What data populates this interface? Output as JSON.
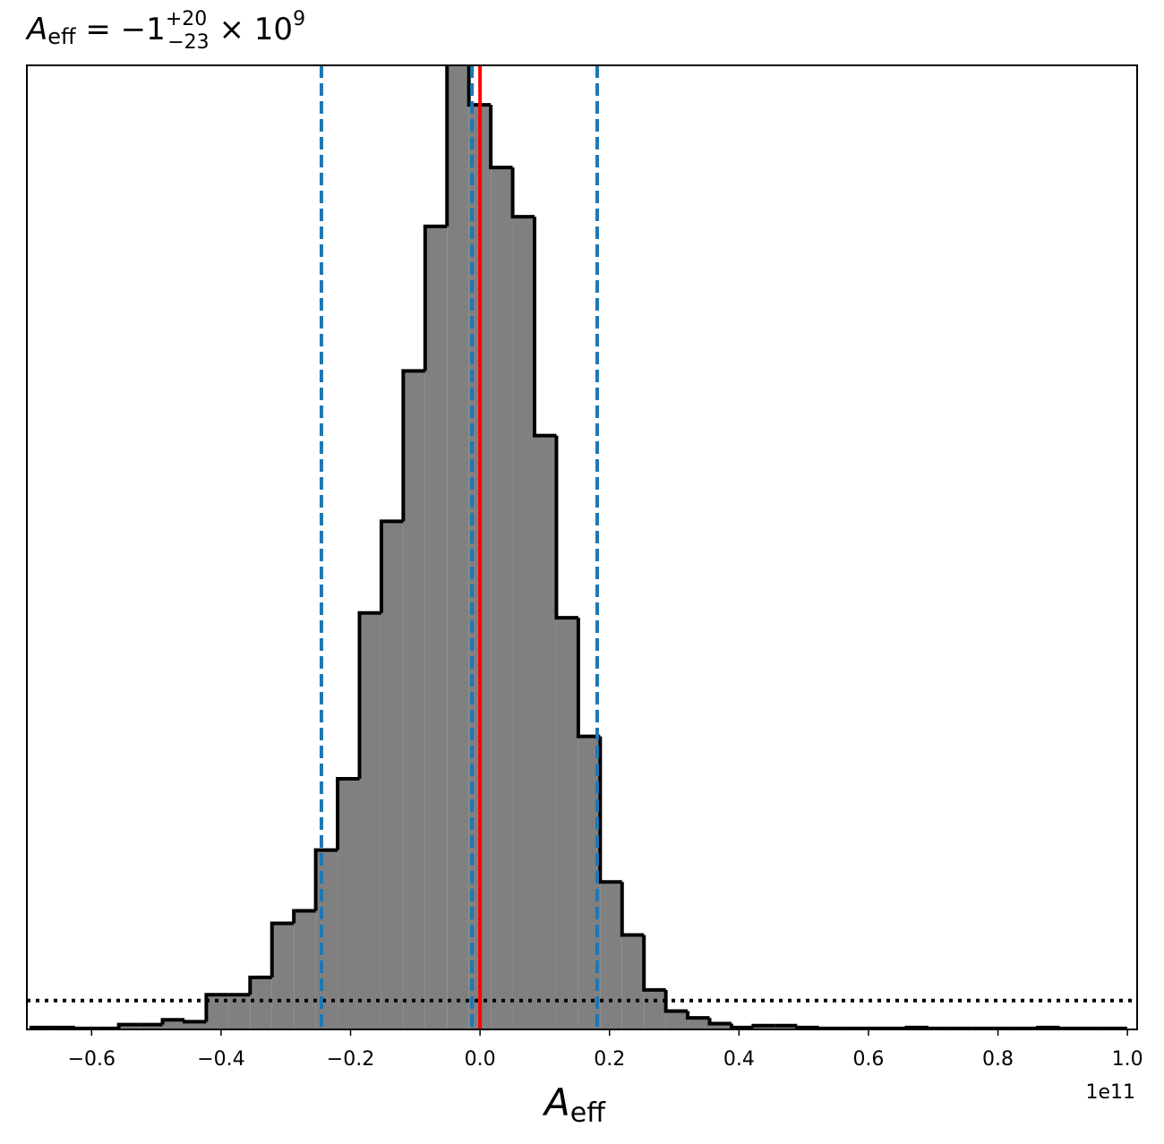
{
  "chart_data": {
    "type": "histogram",
    "title": {
      "symbol": "A",
      "symbol_sub": "eff",
      "text": " = −1",
      "sup": "+20",
      "sub": "−23",
      "suffix": " × 10",
      "exp": "9"
    },
    "xlabel": {
      "symbol": "A",
      "symbol_sub": "eff"
    },
    "x_offset_label": "1e11",
    "bins": [
      -0.6932,
      -0.6594,
      -0.6256,
      -0.5918,
      -0.558,
      -0.5242,
      -0.4904,
      -0.4566,
      -0.4228,
      -0.389,
      -0.3552,
      -0.3214,
      -0.2876,
      -0.2538,
      -0.22,
      -0.1862,
      -0.1524,
      -0.1186,
      -0.0848,
      -0.051,
      -0.0172,
      0.0166,
      0.0504,
      0.0842,
      0.118,
      0.1518,
      0.1856,
      0.2194,
      0.2532,
      0.287,
      0.3208,
      0.3546,
      0.3884,
      0.4222,
      0.456,
      0.4898,
      0.5236,
      0.5574,
      0.5912,
      0.625,
      0.6588,
      0.6926,
      0.7264,
      0.7602,
      0.794,
      0.8278,
      0.8616,
      0.8954,
      0.9292,
      0.963,
      0.9968
    ],
    "values": [
      0.002,
      0.002,
      0.001,
      0.001,
      0.005,
      0.005,
      0.01,
      0.008,
      0.036,
      0.036,
      0.054,
      0.11,
      0.123,
      0.186,
      0.26,
      0.432,
      0.527,
      0.683,
      0.833,
      1.03,
      0.959,
      0.894,
      0.843,
      0.616,
      0.427,
      0.304,
      0.153,
      0.098,
      0.041,
      0.019,
      0.012,
      0.006,
      0.002,
      0.004,
      0.004,
      0.002,
      0.001,
      0.001,
      0.001,
      0.001,
      0.002,
      0.001,
      0.001,
      0.001,
      0.001,
      0.001,
      0.002,
      0.001,
      0.001,
      0.001
    ],
    "color": "#808080",
    "edge_color": "#000000",
    "quantiles": [
      -0.245,
      -0.0124,
      0.181
    ],
    "quantile_color": "#1f77b4",
    "truth": 0.0,
    "truth_color": "#ff0000",
    "prior_level": 0.03,
    "xlim": [
      -0.7,
      1.015
    ],
    "ylim": [
      0,
      1
    ],
    "xticks": [
      {
        "value": -0.6,
        "label": "−0.6"
      },
      {
        "value": -0.4,
        "label": "−0.4"
      },
      {
        "value": -0.2,
        "label": "−0.2"
      },
      {
        "value": 0.0,
        "label": "0.0"
      },
      {
        "value": 0.2,
        "label": "0.2"
      },
      {
        "value": 0.4,
        "label": "0.4"
      },
      {
        "value": 0.6,
        "label": "0.6"
      },
      {
        "value": 0.8,
        "label": "0.8"
      },
      {
        "value": 1.0,
        "label": "1.0"
      }
    ]
  }
}
